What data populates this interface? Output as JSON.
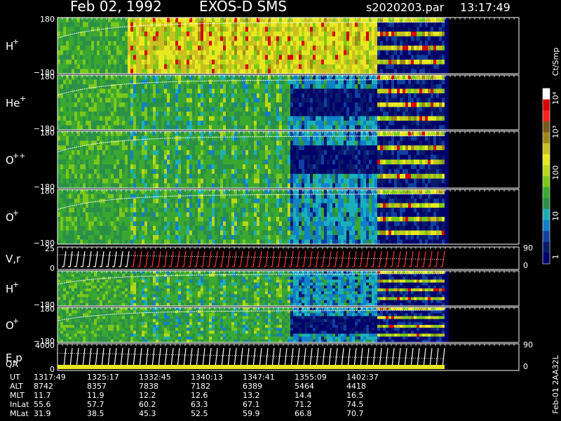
{
  "header": {
    "title_date": "Feb 02, 1992",
    "title_instrument": "EXOS-D SMS",
    "file": "s2020203.par",
    "time": "13:17:49"
  },
  "colorbar": {
    "unit_label": "Ct/Smp",
    "tick_labels": [
      "10⁴",
      "10³",
      "100",
      "10",
      "1"
    ],
    "colors": [
      "#ffffff",
      "#d80000",
      "#ff2020",
      "#7a5a1a",
      "#a08818",
      "#c8c020",
      "#e8e820",
      "#b8d818",
      "#7cc81a",
      "#3aa830",
      "#2a9048",
      "#1ab0b8",
      "#1080c8",
      "#1040a0",
      "#0a1a6a",
      "#00006a"
    ]
  },
  "panels": [
    {
      "id": "h-plus",
      "label": "H",
      "sup": "+",
      "top": "180",
      "bottom": "−180"
    },
    {
      "id": "he-plus",
      "label": "He",
      "sup": "+",
      "top": "180",
      "bottom": "−180"
    },
    {
      "id": "o-plusplus",
      "label": "O",
      "sup": "++",
      "top": "180",
      "bottom": "−180"
    },
    {
      "id": "o-plus",
      "label": "O",
      "sup": "+",
      "top": "180",
      "bottom": "−180"
    },
    {
      "id": "vr",
      "label": "V,r",
      "sup": "",
      "top": "25",
      "bottom": "0",
      "right_top": "90",
      "right_bottom": "0"
    },
    {
      "id": "h-plus-2",
      "label": "H",
      "sup": "+",
      "top": "",
      "bottom": "−180"
    },
    {
      "id": "o-plus-2",
      "label": "O",
      "sup": "+",
      "top": "180",
      "bottom": "−180"
    },
    {
      "id": "ep",
      "label": "E,p",
      "sup": "",
      "top": "4000",
      "bottom": "0",
      "right_top": "90",
      "right_bottom": "0"
    }
  ],
  "qa_label": "QA",
  "orbit_table": {
    "rows": [
      {
        "label": "UT",
        "values": [
          "1317:49",
          "1325:17",
          "1332:45",
          "1340:13",
          "1347:41",
          "1355:09",
          "1402:37"
        ]
      },
      {
        "label": "ALT",
        "values": [
          "8742",
          "8357",
          "7838",
          "7182",
          "6389",
          "5464",
          "4418"
        ]
      },
      {
        "label": "MLT",
        "values": [
          "11.7",
          "11.9",
          "12.2",
          "12.6",
          "13.2",
          "14.4",
          "16.5"
        ]
      },
      {
        "label": "InLat",
        "values": [
          "55.6",
          "57.7",
          "60.2",
          "63.3",
          "67.1",
          "71.2",
          "74.5"
        ]
      },
      {
        "label": "MLat",
        "values": [
          "31.9",
          "38.5",
          "45.3",
          "52.5",
          "59.9",
          "66.8",
          "70.7"
        ]
      }
    ]
  },
  "footer_id": "Feb-01 2AA32L",
  "chart_data": {
    "type": "heatmap",
    "x_label": "UT",
    "x": [
      "1317:49",
      "1325:17",
      "1332:45",
      "1340:13",
      "1347:41",
      "1355:09",
      "1402:37"
    ],
    "series": [
      {
        "name": "H+",
        "ylim": [
          -180,
          180
        ]
      },
      {
        "name": "He+",
        "ylim": [
          -180,
          180
        ]
      },
      {
        "name": "O++",
        "ylim": [
          -180,
          180
        ]
      },
      {
        "name": "O+",
        "ylim": [
          -180,
          180
        ]
      },
      {
        "name": "V,r",
        "ylim": [
          0,
          25
        ]
      },
      {
        "name": "H+",
        "ylim": [
          -180,
          180
        ]
      },
      {
        "name": "O+",
        "ylim": [
          -180,
          180
        ]
      },
      {
        "name": "E,p",
        "ylim": [
          0,
          4000
        ]
      }
    ],
    "colorbar_range": [
      1,
      10000
    ],
    "colorbar_scale": "log"
  }
}
